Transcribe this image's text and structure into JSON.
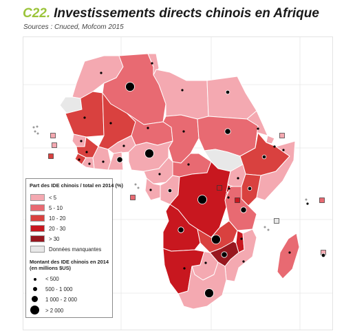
{
  "header": {
    "code": "C22.",
    "title": "Investissements directs chinois en Afrique",
    "sources": "Sources :  Cnuced, Mofcom 2015"
  },
  "colors": {
    "lt5": "#f4a9b1",
    "5_10": "#e86a72",
    "10_20": "#d9413f",
    "20_30": "#c8171f",
    "gt30": "#98171f",
    "missing": "#e8e8e8",
    "ocean": "#ffffff",
    "border": "#ffffff"
  },
  "legend": {
    "share_title_line1": "Part des IDE chinois / total en 2014 (%)",
    "share_classes": [
      "< 5",
      "5 - 10",
      "10 - 20",
      "20 - 30",
      "> 30",
      "Données manquantes"
    ],
    "amount_title_line1": "Montant des IDE chinois en 2014",
    "amount_title_line2": "(en millions $US)",
    "amount_classes": [
      "< 500",
      "500 - 1 000",
      "1 000 - 2 000",
      "> 2 000"
    ]
  },
  "countries": [
    {
      "name": "Morocco",
      "class": "lt5",
      "amount": "lt500"
    },
    {
      "name": "Algeria",
      "class": "5_10",
      "amount": "gt2000"
    },
    {
      "name": "Tunisia",
      "class": "lt5",
      "amount": "lt500"
    },
    {
      "name": "Libya",
      "class": "lt5",
      "amount": "lt500"
    },
    {
      "name": "Egypt",
      "class": "lt5",
      "amount": "500_1000"
    },
    {
      "name": "Western Sahara",
      "class": "missing",
      "amount": null
    },
    {
      "name": "Mauritania",
      "class": "10_20",
      "amount": "lt500"
    },
    {
      "name": "Mali",
      "class": "10_20",
      "amount": "lt500"
    },
    {
      "name": "Niger",
      "class": "5_10",
      "amount": "lt500"
    },
    {
      "name": "Chad",
      "class": "5_10",
      "amount": "lt500"
    },
    {
      "name": "Sudan",
      "class": "5_10",
      "amount": "1000_2000"
    },
    {
      "name": "South Sudan",
      "class": "missing",
      "amount": null
    },
    {
      "name": "Eritrea",
      "class": "lt5",
      "amount": "lt500"
    },
    {
      "name": "Djibouti",
      "class": "lt5",
      "amount": "lt500"
    },
    {
      "name": "Ethiopia",
      "class": "10_20",
      "amount": "500_1000"
    },
    {
      "name": "Somalia",
      "class": "lt5",
      "amount": "lt500"
    },
    {
      "name": "Senegal",
      "class": "lt5",
      "amount": "lt500"
    },
    {
      "name": "Guinea",
      "class": "10_20",
      "amount": "lt500"
    },
    {
      "name": "Sierra Leone",
      "class": "10_20",
      "amount": "lt500"
    },
    {
      "name": "Liberia",
      "class": "lt5",
      "amount": "lt500"
    },
    {
      "name": "Côte d'Ivoire",
      "class": "lt5",
      "amount": "lt500"
    },
    {
      "name": "Burkina Faso",
      "class": "lt5",
      "amount": "lt500"
    },
    {
      "name": "Ghana",
      "class": "lt5",
      "amount": "1000_2000"
    },
    {
      "name": "Nigeria",
      "class": "lt5",
      "amount": "gt2000"
    },
    {
      "name": "Cameroon",
      "class": "lt5",
      "amount": "lt500"
    },
    {
      "name": "Central African Republic",
      "class": "5_10",
      "amount": "lt500"
    },
    {
      "name": "Gabon",
      "class": "lt5",
      "amount": "lt500"
    },
    {
      "name": "Congo",
      "class": "lt5",
      "amount": "500_1000"
    },
    {
      "name": "DR Congo",
      "class": "20_30",
      "amount": "gt2000"
    },
    {
      "name": "Uganda",
      "class": "lt5",
      "amount": "lt500"
    },
    {
      "name": "Kenya",
      "class": "10_20",
      "amount": "500_1000"
    },
    {
      "name": "Rwanda",
      "class": "20_30",
      "amount": "lt500"
    },
    {
      "name": "Burundi",
      "class": "20_30",
      "amount": "lt500"
    },
    {
      "name": "Tanzania",
      "class": "5_10",
      "amount": "1000_2000"
    },
    {
      "name": "Angola",
      "class": "20_30",
      "amount": "1000_2000"
    },
    {
      "name": "Zambia",
      "class": "10_20",
      "amount": "gt2000"
    },
    {
      "name": "Malawi",
      "class": "20_30",
      "amount": "lt500"
    },
    {
      "name": "Mozambique",
      "class": "lt5",
      "amount": "lt500"
    },
    {
      "name": "Namibia",
      "class": "20_30",
      "amount": "lt500"
    },
    {
      "name": "Botswana",
      "class": "lt5",
      "amount": "lt500"
    },
    {
      "name": "Zimbabwe",
      "class": "gt30",
      "amount": "1000_2000"
    },
    {
      "name": "South Africa",
      "class": "lt5",
      "amount": "gt2000"
    },
    {
      "name": "Madagascar",
      "class": "5_10",
      "amount": "lt500"
    },
    {
      "name": "Cape Verde",
      "class": "lt5",
      "amount": "lt500"
    },
    {
      "name": "Mauritius",
      "class": "lt5",
      "amount": "500_1000"
    },
    {
      "name": "Seychelles",
      "class": "5_10",
      "amount": "lt500"
    },
    {
      "name": "Comoros",
      "class": "missing",
      "amount": null
    },
    {
      "name": "São Tomé and Príncipe",
      "class": "5_10",
      "amount": "lt500"
    }
  ]
}
